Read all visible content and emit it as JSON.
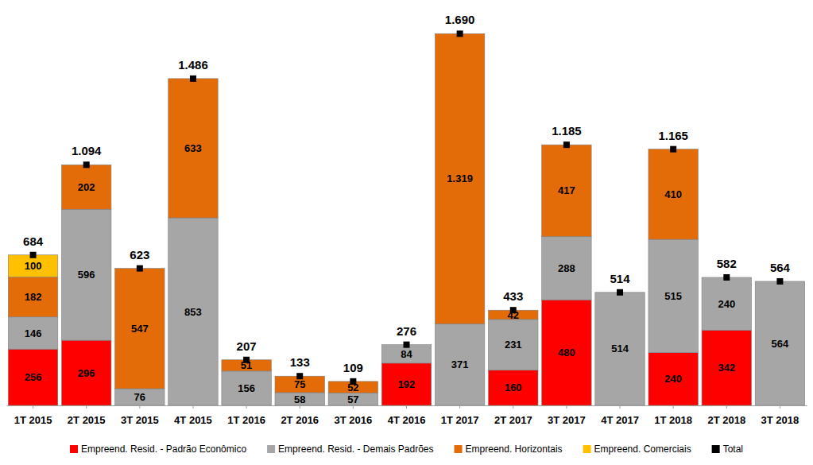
{
  "chart_data": {
    "type": "bar",
    "stacked": true,
    "data_labels": true,
    "tick_labels": "x",
    "legend": "bottom",
    "ylim": [
      0,
      1800
    ],
    "categories": [
      "1T 2015",
      "2T 2015",
      "3T 2015",
      "4T 2015",
      "1T 2016",
      "2T 2016",
      "3T 2016",
      "4T 2016",
      "1T 2017",
      "2T 2017",
      "3T 2017",
      "4T 2017",
      "1T 2018",
      "2T 2018",
      "3T 2018"
    ],
    "series": [
      {
        "name": "Empreend. Resid. - Padrão Econômico",
        "color": "#ff0000",
        "values": [
          256,
          296,
          null,
          null,
          null,
          null,
          null,
          192,
          null,
          160,
          480,
          null,
          240,
          342,
          null
        ]
      },
      {
        "name": "Empreend. Resid. - Demais Padrões",
        "color": "#a6a6a6",
        "values": [
          146,
          596,
          76,
          853,
          156,
          58,
          57,
          84,
          371,
          231,
          288,
          514,
          515,
          240,
          564
        ]
      },
      {
        "name": "Empreend. Horizontais",
        "color": "#e36c09",
        "values": [
          182,
          202,
          547,
          633,
          51,
          75,
          52,
          null,
          1319,
          42,
          417,
          null,
          410,
          null,
          null
        ],
        "value_labels": [
          "182",
          "202",
          "547",
          "633",
          "51",
          "75",
          "52",
          null,
          "1.319",
          "42",
          "417",
          null,
          "410",
          null,
          null
        ]
      },
      {
        "name": "Empreend. Comerciais",
        "color": "#ffc000",
        "values": [
          100,
          null,
          null,
          null,
          null,
          null,
          null,
          null,
          null,
          null,
          null,
          null,
          null,
          null,
          null
        ]
      },
      {
        "name": "Total",
        "color": "#000000",
        "type": "scatter",
        "marker": "square",
        "values": [
          684,
          1094,
          623,
          1486,
          207,
          133,
          109,
          276,
          1690,
          433,
          1185,
          514,
          1165,
          582,
          564
        ],
        "value_labels": [
          "684",
          "1.094",
          "623",
          "1.486",
          "207",
          "133",
          "109",
          "276",
          "1.690",
          "433",
          "1.185",
          "514",
          "1.165",
          "582",
          "564"
        ]
      }
    ]
  }
}
